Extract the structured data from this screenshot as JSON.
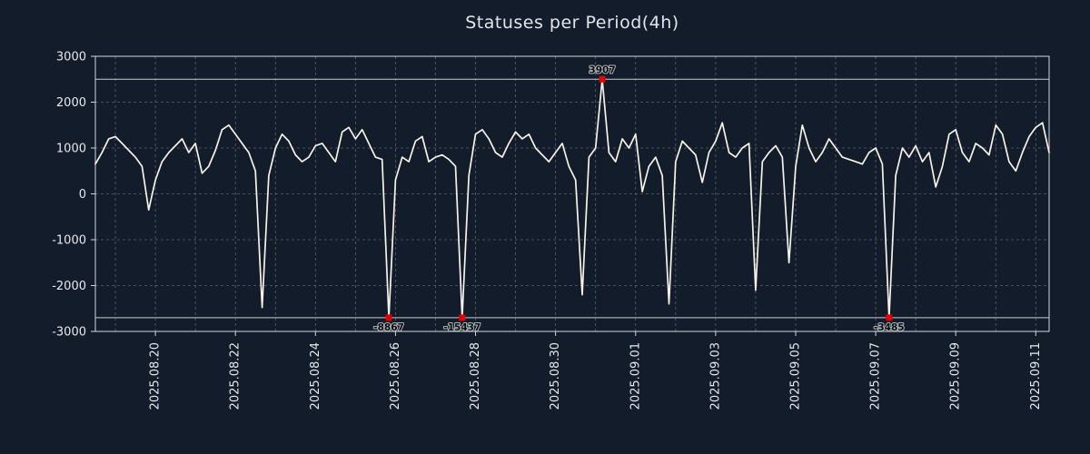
{
  "title": "Statuses per Period(4h)",
  "colors": {
    "background": "#131c2b",
    "line": "#f7f3e6",
    "grid": "#5d636e",
    "axis": "#d3d7dc",
    "clip_line": "#c6cbd2",
    "marker": "#e00000",
    "annotation_text": "#0b0b0b",
    "tick_text": "#e8e9ec",
    "title_text": "#e2e6ea"
  },
  "chart_data": {
    "type": "line",
    "title": "Statuses per Period(4h)",
    "xlabel": "",
    "ylabel": "",
    "interval_hours": 4,
    "points_per_day": 6,
    "ylim": [
      -3000,
      3000
    ],
    "clip": [
      -2700,
      2500
    ],
    "grid": true,
    "y_ticks": [
      {
        "value": -3000,
        "label": "-3000"
      },
      {
        "value": -2000,
        "label": "-2000"
      },
      {
        "value": -1000,
        "label": "-1000"
      },
      {
        "value": 0,
        "label": "0"
      },
      {
        "value": 1000,
        "label": "1000"
      },
      {
        "value": 2000,
        "label": "2000"
      },
      {
        "value": 3000,
        "label": "3000"
      }
    ],
    "x_ticks": [
      {
        "day": 1.5,
        "label": "2025.08.20"
      },
      {
        "day": 3.5,
        "label": "2025.08.22"
      },
      {
        "day": 5.5,
        "label": "2025.08.24"
      },
      {
        "day": 7.5,
        "label": "2025.08.26"
      },
      {
        "day": 9.5,
        "label": "2025.08.28"
      },
      {
        "day": 11.5,
        "label": "2025.08.30"
      },
      {
        "day": 13.5,
        "label": "2025.09.01"
      },
      {
        "day": 15.5,
        "label": "2025.09.03"
      },
      {
        "day": 17.5,
        "label": "2025.09.05"
      },
      {
        "day": 19.5,
        "label": "2025.09.07"
      },
      {
        "day": 21.5,
        "label": "2025.09.09"
      },
      {
        "day": 23.5,
        "label": "2025.09.11"
      }
    ],
    "values": [
      650,
      900,
      1200,
      1250,
      1100,
      950,
      800,
      600,
      -350,
      300,
      700,
      900,
      1050,
      1200,
      900,
      1100,
      450,
      600,
      950,
      1400,
      1500,
      1300,
      1100,
      900,
      500,
      -2480,
      400,
      1000,
      1300,
      1150,
      850,
      700,
      800,
      1050,
      1100,
      900,
      700,
      1350,
      1450,
      1200,
      1400,
      1100,
      800,
      750,
      -8867,
      300,
      800,
      700,
      1150,
      1250,
      700,
      800,
      850,
      750,
      600,
      -15437,
      400,
      1300,
      1400,
      1200,
      900,
      800,
      1100,
      1350,
      1200,
      1300,
      1000,
      850,
      700,
      900,
      1100,
      600,
      300,
      -2200,
      800,
      1000,
      3907,
      900,
      700,
      1200,
      1000,
      1300,
      50,
      600,
      800,
      400,
      -2400,
      700,
      1150,
      1000,
      850,
      250,
      900,
      1150,
      1550,
      900,
      800,
      1000,
      1100,
      -2100,
      700,
      900,
      1050,
      800,
      -1500,
      600,
      1500,
      1000,
      700,
      900,
      1200,
      1000,
      800,
      750,
      700,
      650,
      900,
      1000,
      650,
      -3485,
      400,
      1000,
      800,
      1050,
      700,
      900,
      150,
      600,
      1300,
      1400,
      900,
      700,
      1100,
      1000,
      850,
      1500,
      1300,
      700,
      500,
      900,
      1250,
      1450,
      1550,
      900
    ],
    "annotations": [
      {
        "index": 76,
        "label": "3907"
      },
      {
        "index": 44,
        "label": "-8867"
      },
      {
        "index": 55,
        "label": "-15437"
      },
      {
        "index": 119,
        "label": "-3485"
      }
    ],
    "legend": "none"
  }
}
